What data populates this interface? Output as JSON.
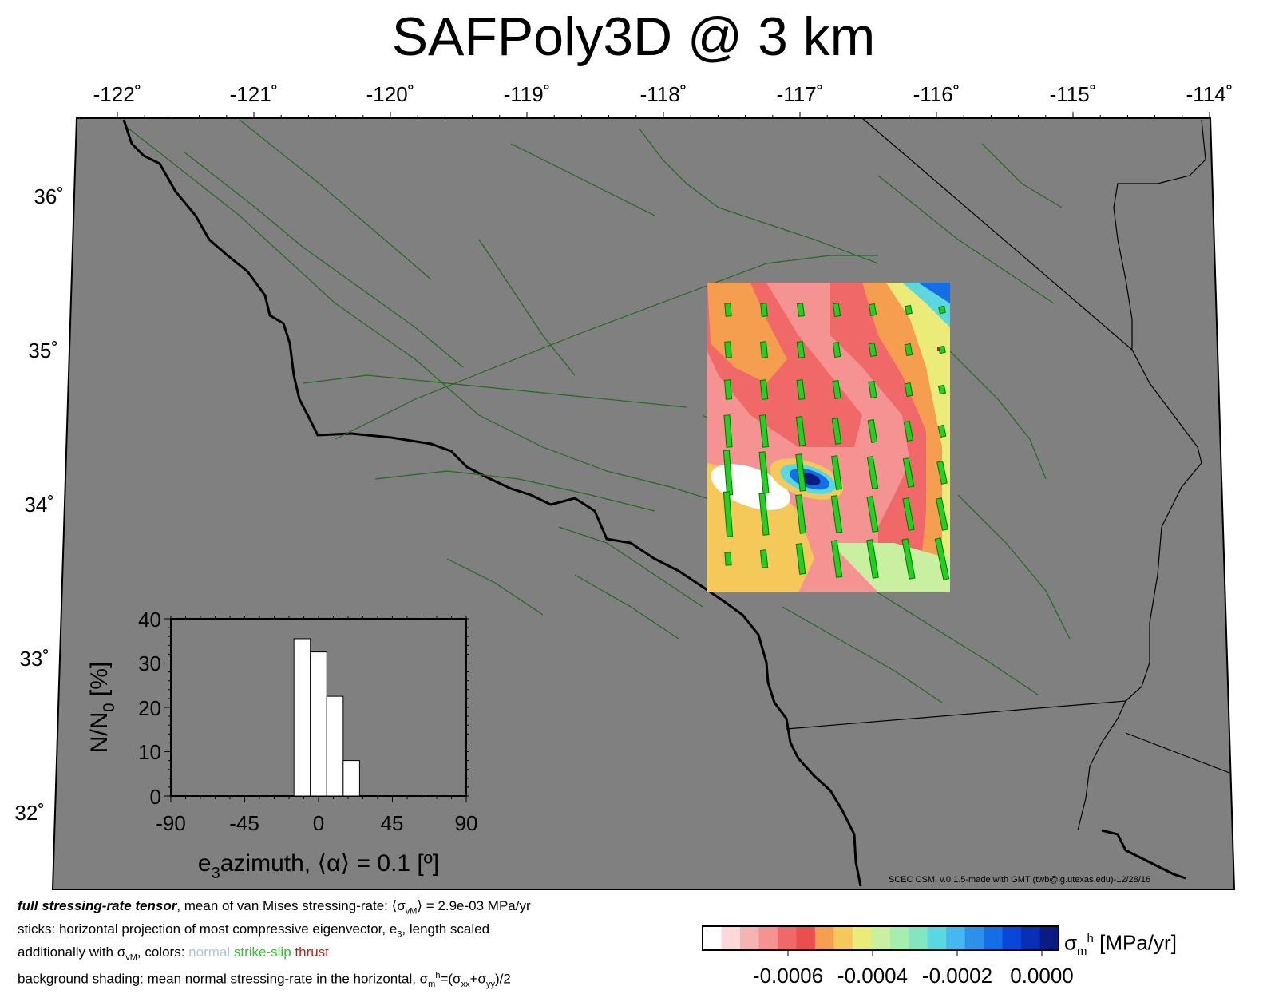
{
  "title": "SAFPoly3D @ 3 km",
  "map": {
    "lon_ticks": [
      "-122˚",
      "-121˚",
      "-120˚",
      "-119˚",
      "-118˚",
      "-117˚",
      "-116˚",
      "-115˚",
      "-114˚"
    ],
    "lat_ticks": [
      "36˚",
      "35˚",
      "34˚",
      "33˚",
      "32˚"
    ],
    "background_color": "#808080",
    "fault_color": "#1f6b1f",
    "coast_color": "#000000"
  },
  "inset": {
    "ylabel_main": "N/N",
    "ylabel_sub": "0",
    "ylabel_unit": "[%]",
    "xlabel_main": "e",
    "xlabel_sub": "3",
    "xlabel_rest": "azimuth, ⟨α⟩ = 0.1 [º]",
    "yticks": [
      "0",
      "10",
      "20",
      "30",
      "40"
    ],
    "xticks": [
      "-90",
      "-45",
      "0",
      "45",
      "90"
    ]
  },
  "chart_data": {
    "type": "bar",
    "xlim": [
      -90,
      90
    ],
    "ylim": [
      0,
      40
    ],
    "bin_width": 10,
    "bins": [
      {
        "from": -15,
        "to": -5,
        "value": 35.5
      },
      {
        "from": -5,
        "to": 5,
        "value": 32.5
      },
      {
        "from": 5,
        "to": 15,
        "value": 22.5
      },
      {
        "from": 15,
        "to": 25,
        "value": 8
      }
    ]
  },
  "colorbar": {
    "colors": [
      "#ffffff",
      "#fbd9d9",
      "#f5b3b3",
      "#f59393",
      "#f06868",
      "#ea4f4f",
      "#f59e4f",
      "#f5c85a",
      "#ebeb7a",
      "#c8f0a0",
      "#a6eeb0",
      "#82e6c0",
      "#5ad7df",
      "#46b8f0",
      "#2d90ea",
      "#146ee6",
      "#0a46d7",
      "#0a2fb4",
      "#0a1c82"
    ],
    "ticks": [
      "-0.0006",
      "-0.0004",
      "-0.0002",
      "0.0000"
    ],
    "label_main": "σ",
    "label_sub": "m",
    "label_sup": "h",
    "label_unit": "[MPa/yr]"
  },
  "caption": {
    "line1_bold": "full stressing-rate tensor",
    "line1_a": ", mean of van Mises stressing-rate: ⟨σ",
    "line1_sub": "vM",
    "line1_b": "⟩ = 2.9e-03 MPa/yr",
    "line2": "sticks: horizontal projection of most compressive eigenvector, e",
    "line2_sub": "3",
    "line2_b": ", length scaled",
    "line3_a": "additionally with σ",
    "line3_sub": "vM",
    "line3_b": ", colors: ",
    "line3_normal": "normal",
    "line3_ss": "strike-slip",
    "line3_thrust": "thrust",
    "line4_a": "background shading: mean normal stressing-rate in the horizontal, σ",
    "line4_sub": "m",
    "line4_sup": "h",
    "line4_b": "=(σ",
    "line4_sub2": "xx",
    "line4_c": "+σ",
    "line4_sub3": "yy",
    "line4_d": ")/2"
  },
  "credit": "SCEC CSM, v.0.1.5-made with GMT (twb@ig.utexas.edu)-12/28/16"
}
